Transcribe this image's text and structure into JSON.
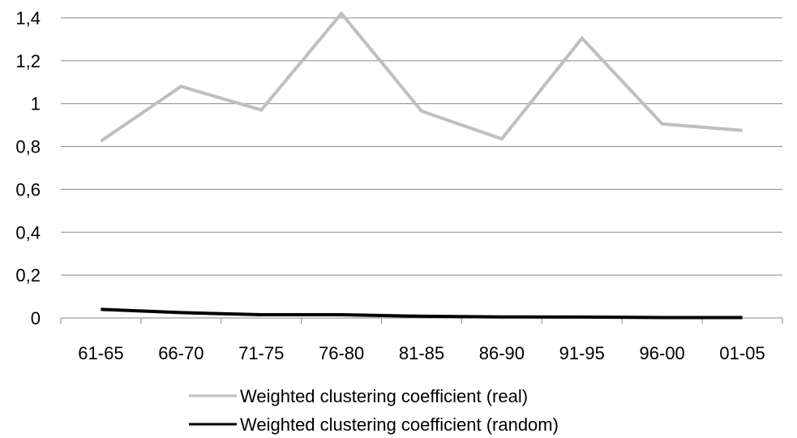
{
  "chart_data": {
    "type": "line",
    "categories": [
      "61-65",
      "66-70",
      "71-75",
      "76-80",
      "81-85",
      "86-90",
      "91-95",
      "96-00",
      "01-05"
    ],
    "series": [
      {
        "name": "Weighted clustering coefficient (real)",
        "color": "#bfbfbf",
        "values": [
          0.825,
          1.08,
          0.97,
          1.42,
          0.965,
          0.835,
          1.305,
          0.905,
          0.875
        ]
      },
      {
        "name": "Weighted clustering coefficient (random)",
        "color": "#000000",
        "values": [
          0.04,
          0.025,
          0.015,
          0.015,
          0.008,
          0.005,
          0.004,
          0.002,
          0.002
        ]
      }
    ],
    "ylim": [
      0,
      1.4
    ],
    "yticks": [
      "0",
      "0,2",
      "0,4",
      "0,6",
      "0,8",
      "1",
      "1,2",
      "1,4"
    ],
    "grid": true,
    "legend_position": "bottom",
    "gridline_color": "#868686"
  }
}
